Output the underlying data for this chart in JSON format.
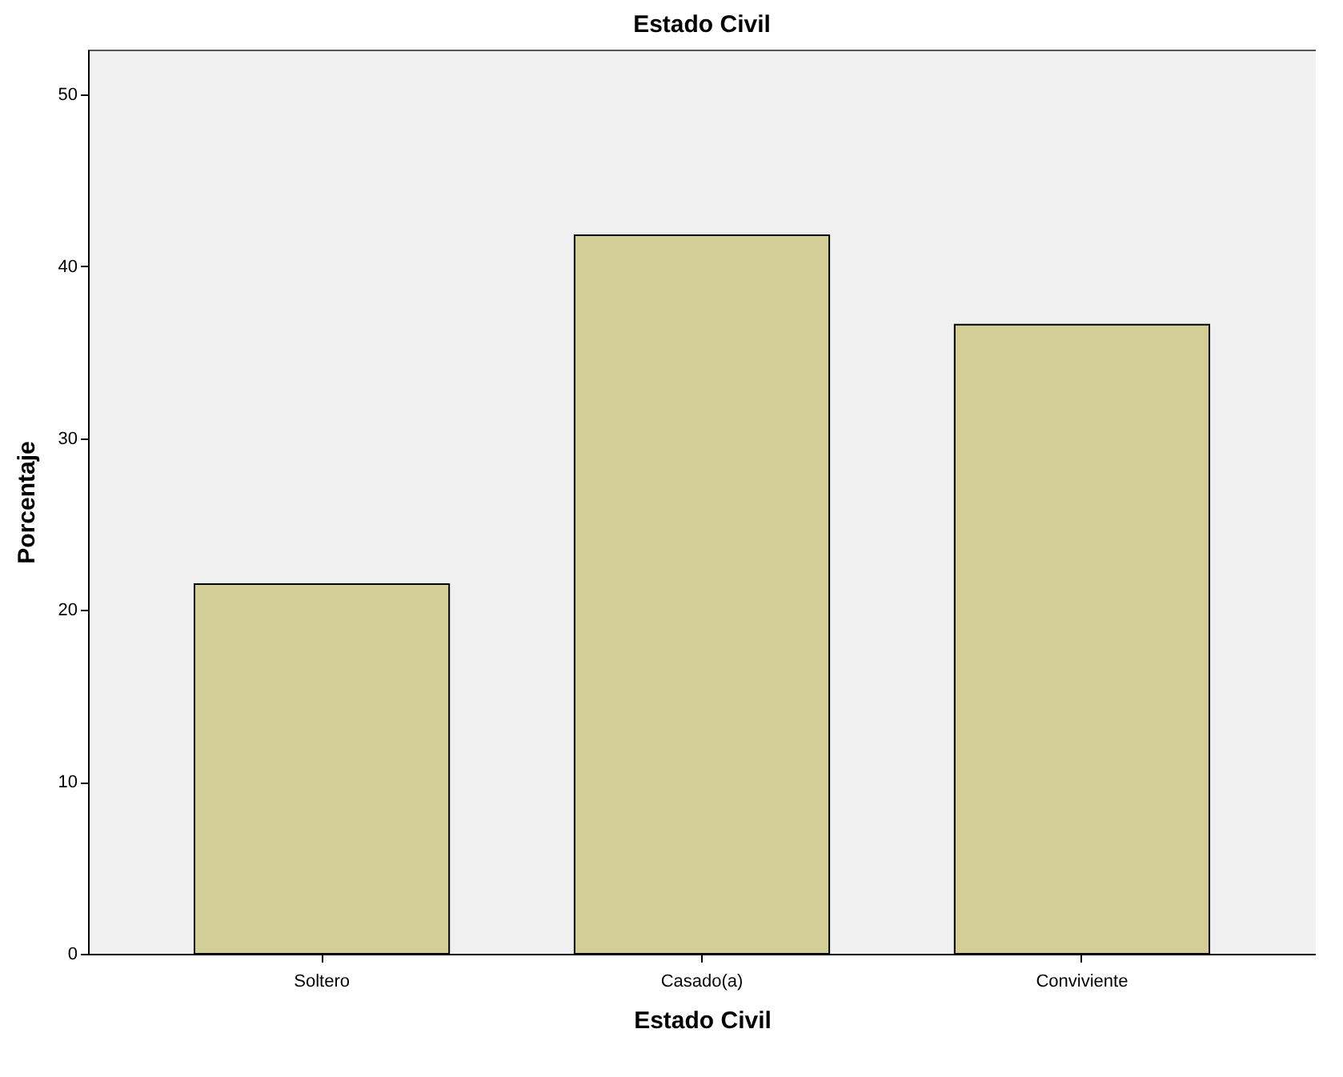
{
  "chart_data": {
    "type": "bar",
    "title": "Estado Civil",
    "xlabel": "Estado Civil",
    "ylabel": "Porcentaje",
    "categories": [
      "Soltero",
      "Casado(a)",
      "Conviviente"
    ],
    "values": [
      21.5,
      41.8,
      36.6
    ],
    "color": "#d3ce97",
    "ylim": [
      0,
      52.6
    ],
    "yticks": [
      0,
      10,
      20,
      30,
      40,
      50
    ],
    "grid": false
  }
}
